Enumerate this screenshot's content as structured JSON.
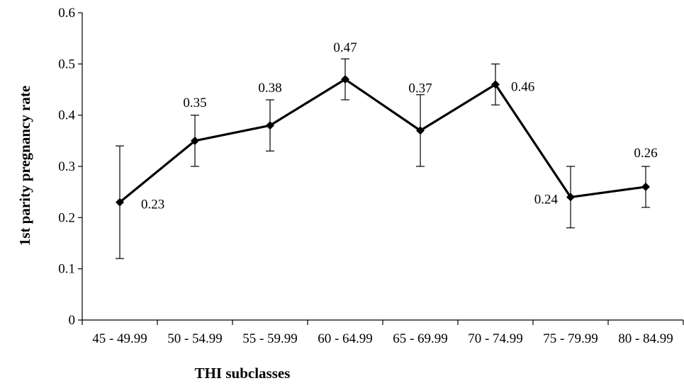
{
  "chart_data": {
    "type": "line",
    "title": "",
    "xlabel": "THI subclasses",
    "ylabel": "1st parity pregnancy rate",
    "categories": [
      "45 - 49.99",
      "50 - 54.99",
      "55 - 59.99",
      "60 - 64.99",
      "65 - 69.99",
      "70 - 74.99",
      "75 - 79.99",
      "80 - 84.99"
    ],
    "ylim": [
      0,
      0.6
    ],
    "yticks": [
      "0",
      "0.1",
      "0.2",
      "0.3",
      "0.4",
      "0.5",
      "0.6"
    ],
    "grid": false,
    "legend": "none",
    "series": [
      {
        "values": [
          0.23,
          0.35,
          0.38,
          0.47,
          0.37,
          0.46,
          0.24,
          0.26
        ],
        "labels": [
          "0.23",
          "0.35",
          "0.38",
          "0.47",
          "0.37",
          "0.46",
          "0.24",
          "0.26"
        ],
        "error_low": [
          0.12,
          0.3,
          0.33,
          0.43,
          0.3,
          0.42,
          0.18,
          0.22
        ],
        "error_high": [
          0.34,
          0.4,
          0.43,
          0.51,
          0.44,
          0.5,
          0.3,
          0.3
        ],
        "marker": "diamond",
        "color": "#000000"
      }
    ]
  }
}
